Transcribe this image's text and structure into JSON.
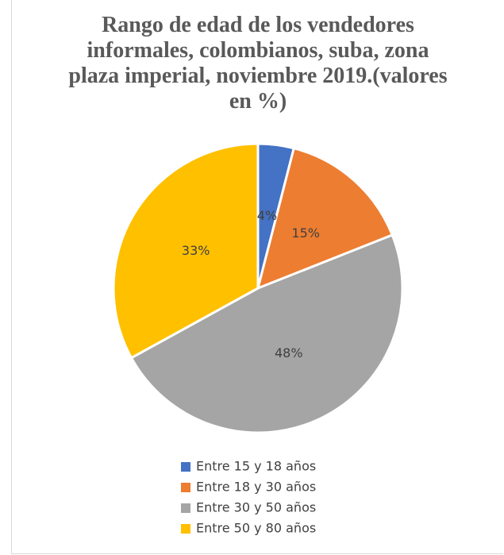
{
  "chart_data": {
    "type": "pie",
    "title": "Rango de edad de los vendedores informales, colombianos, suba, zona plaza imperial, noviembre 2019.(valores en %)",
    "categories": [
      "Entre 15 y 18 años",
      "Entre 18 y 30 años",
      "Entre 30 y 50 años",
      "Entre 50 y 80 años"
    ],
    "values": [
      4,
      15,
      48,
      33
    ],
    "value_labels": [
      "4%",
      "15%",
      "48%",
      "33%"
    ],
    "colors": [
      "#4472c4",
      "#ed7d31",
      "#a5a5a5",
      "#ffc000"
    ],
    "legend": "bottom"
  }
}
